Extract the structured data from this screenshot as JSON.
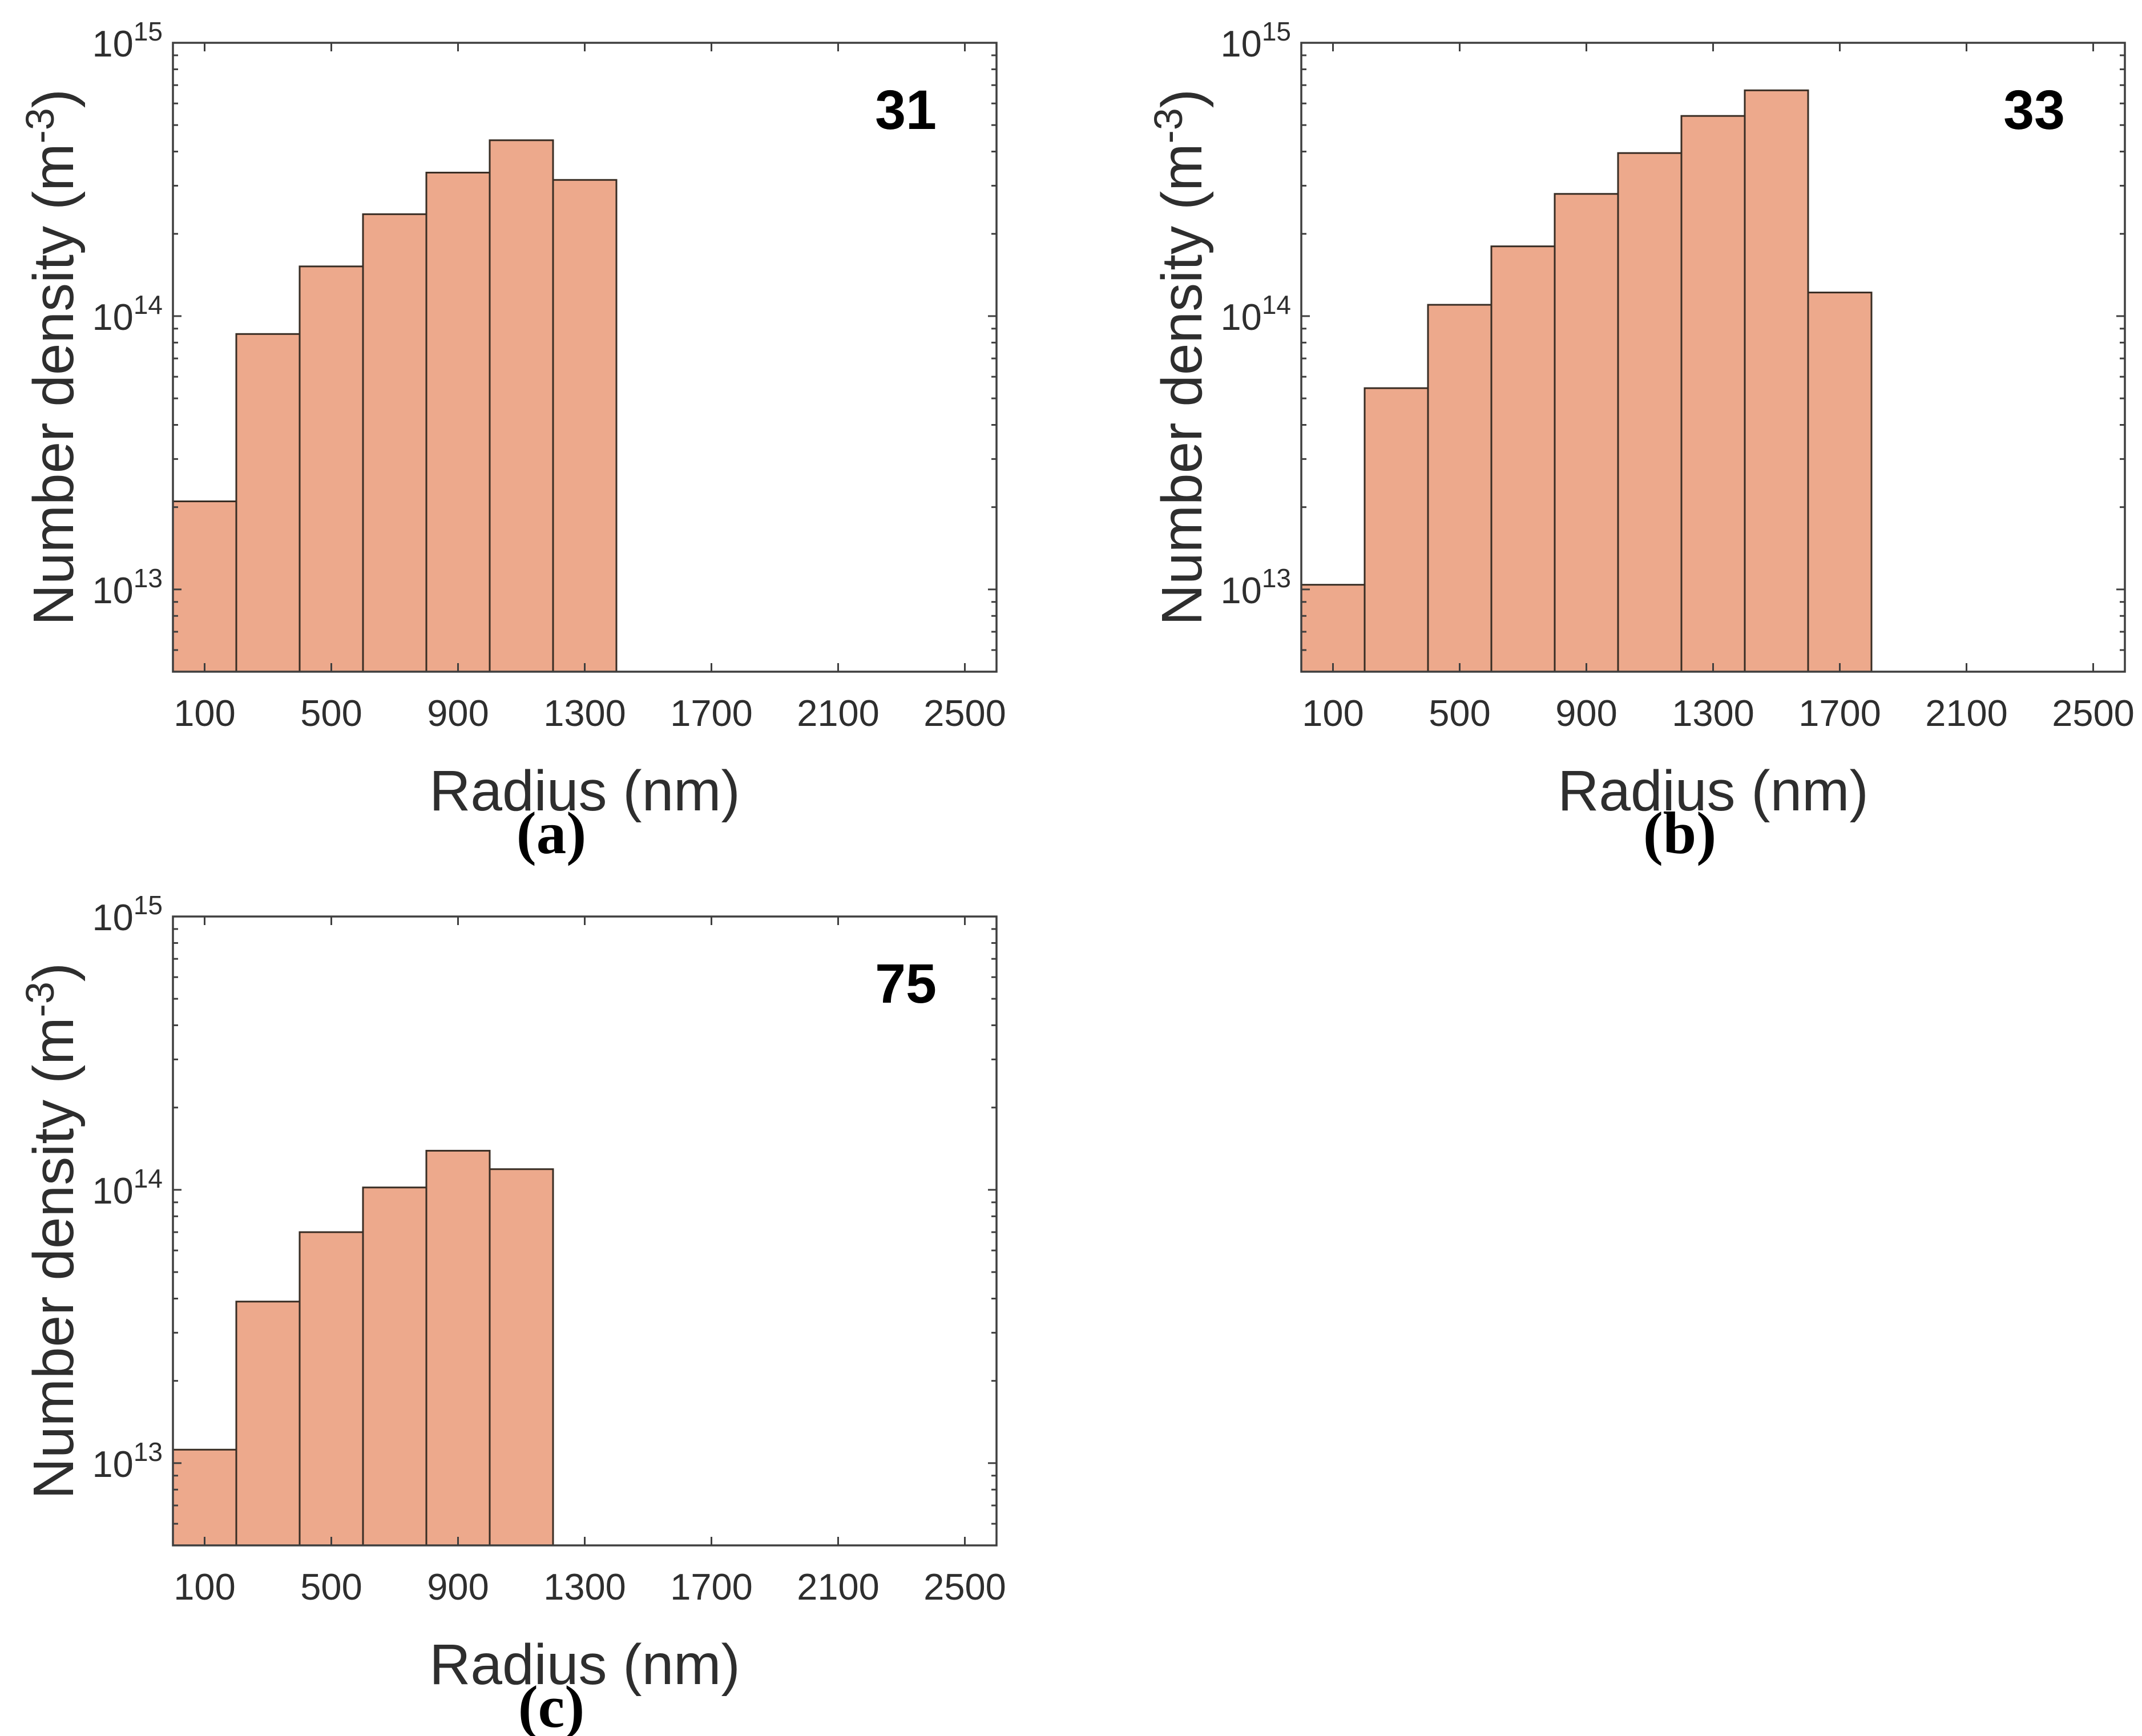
{
  "figure": {
    "background": "#ffffff"
  },
  "colors": {
    "bar_fill": "#EDA98C",
    "bar_edge": "#382D24",
    "axis_line": "#3F3F3F",
    "tick_text": "#2E2E2E",
    "label_text": "#2E2E2E",
    "corner_text": "#000000",
    "caption_text": "#000000"
  },
  "axes": {
    "xlabel": "Radius (nm)",
    "ylabel_pre": "Number density (m",
    "ylabel_sup": "-3",
    "ylabel_post": ")",
    "xlim": [
      0,
      2600
    ],
    "x_ticks": [
      100,
      500,
      900,
      1300,
      1700,
      2100,
      2500
    ],
    "ylim": [
      5000000000000.0,
      1000000000000000.0
    ],
    "y_major_exponents": [
      13,
      14,
      15
    ],
    "y_tick_base": "10",
    "grid": false,
    "tick_direction": "in",
    "box": true
  },
  "chart_data": [
    {
      "type": "bar",
      "panel_label": "(a)",
      "corner_label": "31",
      "title": "",
      "xlabel": "Radius (nm)",
      "ylabel": "Number density (m^-3)",
      "bin_start": 0,
      "bin_width": 200,
      "bin_edges": [
        0,
        200,
        400,
        600,
        800,
        1000,
        1200,
        1400
      ],
      "values": [
        21000000000000.0,
        86000000000000.0,
        152000000000000.0,
        236000000000000.0,
        335000000000000.0,
        440000000000000.0,
        315000000000000.0
      ],
      "xlim": [
        0,
        2600
      ],
      "ylim": [
        5000000000000.0,
        1000000000000000.0
      ]
    },
    {
      "type": "bar",
      "panel_label": "(b)",
      "corner_label": "33",
      "title": "",
      "xlabel": "Radius (nm)",
      "ylabel": "Number density (m^-3)",
      "bin_start": 0,
      "bin_width": 200,
      "bin_edges": [
        0,
        200,
        400,
        600,
        800,
        1000,
        1200,
        1400,
        1600,
        1800
      ],
      "values": [
        10400000000000.0,
        54500000000000.0,
        110000000000000.0,
        180000000000000.0,
        280000000000000.0,
        395000000000000.0,
        540000000000000.0,
        670000000000000.0,
        122000000000000.0
      ],
      "xlim": [
        0,
        2600
      ],
      "ylim": [
        5000000000000.0,
        1000000000000000.0
      ]
    },
    {
      "type": "bar",
      "panel_label": "(c)",
      "corner_label": "75",
      "title": "",
      "xlabel": "Radius (nm)",
      "ylabel": "Number density (m^-3)",
      "bin_start": 0,
      "bin_width": 200,
      "bin_edges": [
        0,
        200,
        400,
        600,
        800,
        1000,
        1200
      ],
      "values": [
        11200000000000.0,
        39000000000000.0,
        70000000000000.0,
        102000000000000.0,
        139000000000000.0,
        119000000000000.0
      ],
      "xlim": [
        0,
        2600
      ],
      "ylim": [
        5000000000000.0,
        1000000000000000.0
      ]
    }
  ]
}
